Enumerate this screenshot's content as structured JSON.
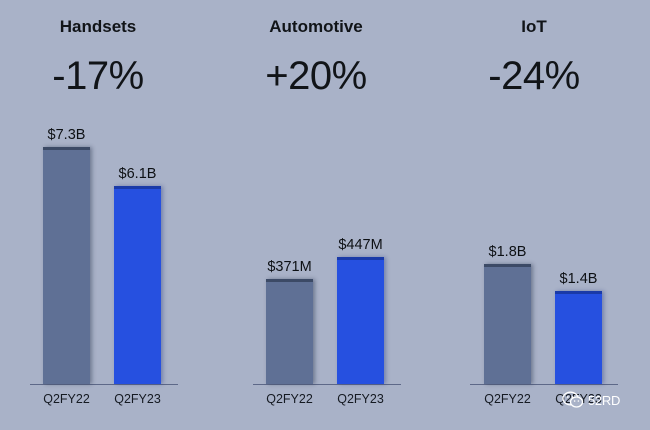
{
  "chart_data": [
    {
      "type": "bar",
      "title": "Handsets",
      "change": "-17%",
      "categories": [
        "Q2FY22",
        "Q2FY23"
      ],
      "values": [
        7.3,
        6.1
      ],
      "unit": "$B",
      "labels": [
        "$7.3B",
        "$6.1B"
      ],
      "ylim": [
        0,
        9.25
      ],
      "colors": [
        "#5f7095",
        "#2650e0"
      ]
    },
    {
      "type": "bar",
      "title": "Automotive",
      "change": "+20%",
      "categories": [
        "Q2FY22",
        "Q2FY23"
      ],
      "values": [
        371,
        447
      ],
      "unit": "$M",
      "labels": [
        "$371M",
        "$447M"
      ],
      "ylim": [
        0,
        1060
      ],
      "colors": [
        "#5f7095",
        "#2650e0"
      ]
    },
    {
      "type": "bar",
      "title": "IoT",
      "change": "-24%",
      "categories": [
        "Q2FY22",
        "Q2FY23"
      ],
      "values": [
        1.8,
        1.4
      ],
      "unit": "$B",
      "labels": [
        "$1.8B",
        "$1.4B"
      ],
      "ylim": [
        0,
        4.5
      ],
      "colors": [
        "#5f7095",
        "#2650e0"
      ]
    }
  ],
  "watermark": {
    "text": "52RD",
    "icon": "wechat-icon"
  }
}
